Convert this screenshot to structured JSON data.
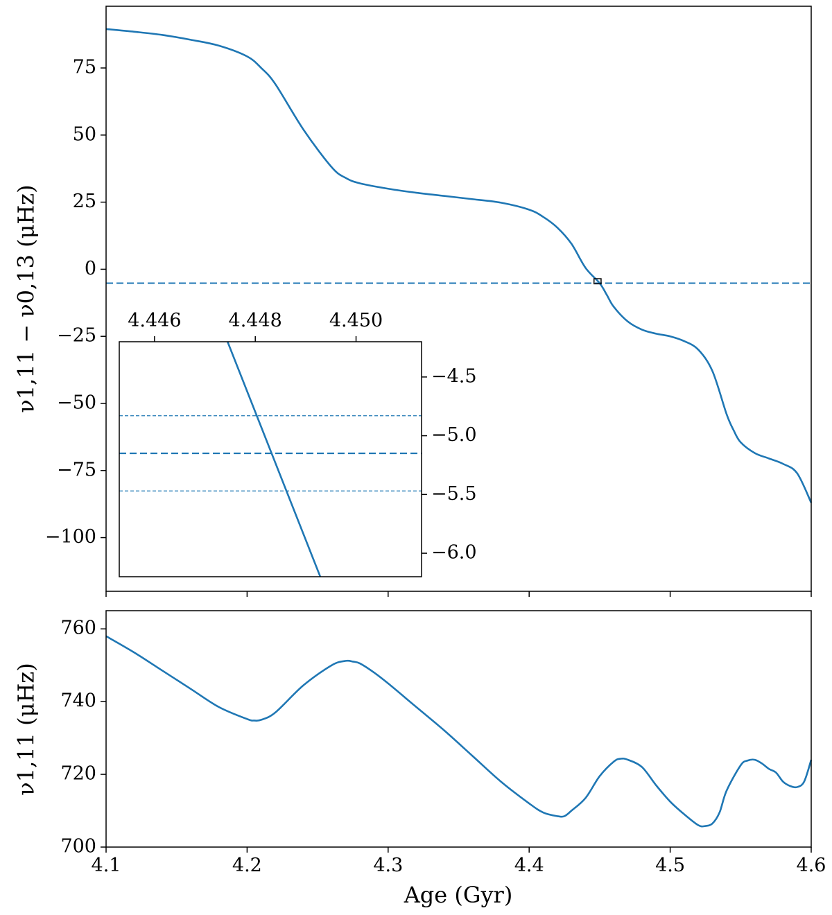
{
  "colors": {
    "series": "#1f77b4",
    "axis": "#000000",
    "background": "#ffffff"
  },
  "chart_data": [
    {
      "id": "top",
      "type": "line",
      "ylabel": "ν1,11 − ν0,13 (μHz)",
      "xlim": [
        4.1,
        4.6
      ],
      "ylim": [
        -120,
        98
      ],
      "xticks": [
        4.1,
        4.2,
        4.3,
        4.4,
        4.5,
        4.6
      ],
      "yticks": [
        75,
        50,
        25,
        0,
        -25,
        -50,
        -75,
        -100
      ],
      "ytick_labels": [
        "75",
        "50",
        "25",
        "0",
        "−25",
        "−50",
        "−75",
        "−100"
      ],
      "series": [
        {
          "name": "ν1,11 − ν0,13",
          "x": [
            4.1,
            4.12,
            4.14,
            4.16,
            4.18,
            4.2,
            4.21,
            4.22,
            4.24,
            4.26,
            4.27,
            4.28,
            4.3,
            4.32,
            4.34,
            4.36,
            4.38,
            4.4,
            4.41,
            4.42,
            4.43,
            4.44,
            4.45,
            4.455,
            4.46,
            4.47,
            4.48,
            4.49,
            4.5,
            4.51,
            4.52,
            4.53,
            4.54,
            4.545,
            4.55,
            4.56,
            4.57,
            4.58,
            4.59,
            4.6
          ],
          "y": [
            89.5,
            88.5,
            87.3,
            85.5,
            83.3,
            79.3,
            75.0,
            69.0,
            52.0,
            38.0,
            34.0,
            32.0,
            30.0,
            28.5,
            27.3,
            26.1,
            24.8,
            22.2,
            19.5,
            15.5,
            9.5,
            0.5,
            -5.2,
            -9.5,
            -14.0,
            -19.5,
            -22.5,
            -24.0,
            -25.0,
            -26.8,
            -30.0,
            -38.0,
            -54.0,
            -60.0,
            -64.5,
            -68.5,
            -70.5,
            -72.5,
            -76.0,
            -87.0
          ]
        }
      ],
      "reference_line": {
        "y": -5.2,
        "style": "dashed"
      },
      "zoom_box": {
        "x": [
          4.446,
          4.451
        ],
        "y": [
          -6.2,
          -4.3
        ]
      }
    },
    {
      "id": "inset",
      "type": "line",
      "xlim": [
        4.4453,
        4.4513
      ],
      "ylim": [
        -6.2,
        -4.2
      ],
      "xticks": [
        4.446,
        4.448,
        4.45
      ],
      "xtick_labels": [
        "4.446",
        "4.448",
        "4.450"
      ],
      "yticks": [
        -4.5,
        -5.0,
        -5.5,
        -6.0
      ],
      "ytick_labels": [
        "−4.5",
        "−5.0",
        "−5.5",
        "−6.0"
      ],
      "series": [
        {
          "name": "ν1,11 − ν0,13",
          "x": [
            4.44745,
            4.44929
          ],
          "y": [
            -4.2,
            -6.2
          ]
        }
      ],
      "reference_line": {
        "y": -5.15,
        "style": "dashed"
      },
      "uncertainty_lines": [
        -4.83,
        -5.47
      ]
    },
    {
      "id": "bottom",
      "type": "line",
      "xlabel": "Age (Gyr)",
      "ylabel": "ν1,11 (μHz)",
      "xlim": [
        4.1,
        4.6
      ],
      "ylim": [
        700,
        765
      ],
      "xticks": [
        4.1,
        4.2,
        4.3,
        4.4,
        4.5,
        4.6
      ],
      "xtick_labels": [
        "4.1",
        "4.2",
        "4.3",
        "4.4",
        "4.5",
        "4.6"
      ],
      "yticks": [
        700,
        720,
        740,
        760
      ],
      "ytick_labels": [
        "700",
        "720",
        "740",
        "760"
      ],
      "series": [
        {
          "name": "ν1,11",
          "x": [
            4.1,
            4.12,
            4.14,
            4.16,
            4.18,
            4.2,
            4.205,
            4.21,
            4.22,
            4.24,
            4.26,
            4.27,
            4.275,
            4.28,
            4.29,
            4.3,
            4.32,
            4.34,
            4.36,
            4.38,
            4.4,
            4.41,
            4.42,
            4.425,
            4.43,
            4.44,
            4.45,
            4.46,
            4.465,
            4.47,
            4.48,
            4.49,
            4.5,
            4.51,
            4.52,
            4.525,
            4.53,
            4.535,
            4.54,
            4.55,
            4.555,
            4.56,
            4.565,
            4.57,
            4.575,
            4.58,
            4.585,
            4.59,
            4.595,
            4.6
          ],
          "y": [
            758,
            753.5,
            748.5,
            743.5,
            738.5,
            735.2,
            734.8,
            735.0,
            737.0,
            744.5,
            750.0,
            751.2,
            751.0,
            750.5,
            748.0,
            745.0,
            738.5,
            732.0,
            725.0,
            718.0,
            712.0,
            709.5,
            708.5,
            708.5,
            710.0,
            713.5,
            719.5,
            723.5,
            724.3,
            724.0,
            722.0,
            717.0,
            712.5,
            709.0,
            706.0,
            705.8,
            706.5,
            709.5,
            715.5,
            722.5,
            723.8,
            724.0,
            723.0,
            721.5,
            720.5,
            718.0,
            716.8,
            716.5,
            718.0,
            724.0
          ]
        }
      ]
    }
  ]
}
